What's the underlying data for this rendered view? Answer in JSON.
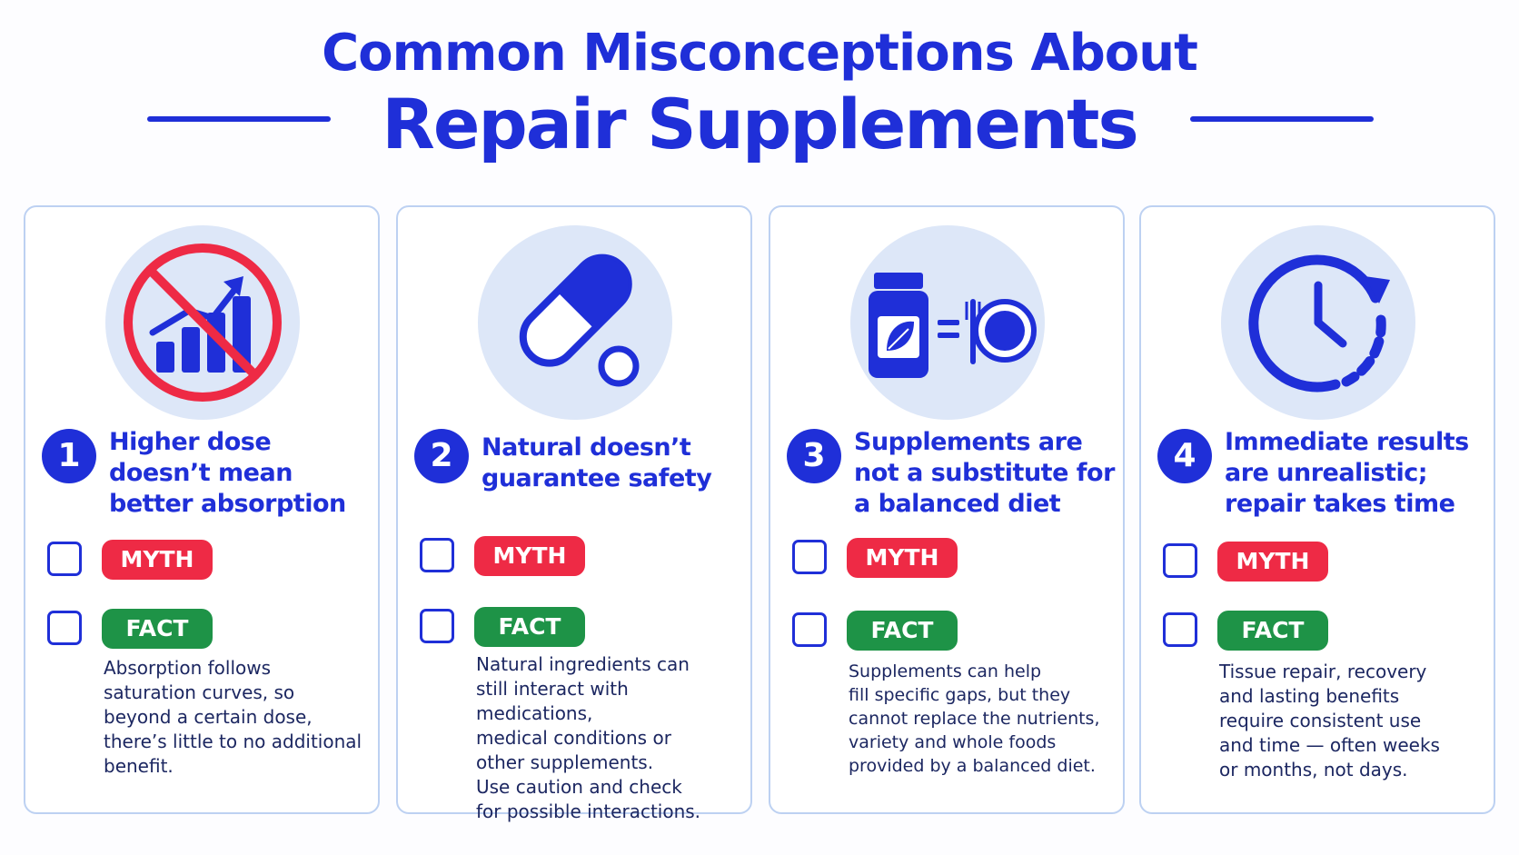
{
  "header": {
    "title_line1": "Common Misconceptions About",
    "title_line2": "Repair Supplements"
  },
  "colors": {
    "primary_blue": "#1f2fd8",
    "myth_red": "#ee2a45",
    "fact_green": "#1e9347",
    "icon_bg": "#dde7f8",
    "card_border": "#bdd1f2"
  },
  "cards": [
    {
      "number": "1",
      "icon": "no-bar-chart-growth-icon",
      "heading": "Higher dose doesn’t mean better absorption",
      "myth_label": "MYTH",
      "fact_label": "FACT",
      "body": "Absorption follows\nsaturation curves, so\nbeyond a certain dose,\nthere’s little to no additional\nbenefit."
    },
    {
      "number": "2",
      "icon": "capsule-pill-icon",
      "heading": "Natural doesn’t guarantee safety",
      "myth_label": "MYTH",
      "fact_label": "FACT",
      "body": "Natural ingredients can\nstill interact with medications,\nmedical conditions or\nother supplements.\nUse caution and check\nfor possible interactions."
    },
    {
      "number": "3",
      "icon": "supplement-bottle-equals-plate-icon",
      "heading": "Supplements are not a substitute for a balanced diet",
      "myth_label": "MYTH",
      "fact_label": "FACT",
      "body": "Supplements can help\nfill specific gaps, but they\ncannot replace the nutrients,\nvariety and whole foods\nprovided by a balanced diet."
    },
    {
      "number": "4",
      "icon": "clock-time-icon",
      "heading": "Immediate results are unrealistic; repair takes time",
      "myth_label": "MYTH",
      "fact_label": "FACT",
      "body": "Tissue repair, recovery\nand lasting benefits\nrequire consistent use\nand time — often weeks\nor months, not days."
    }
  ]
}
